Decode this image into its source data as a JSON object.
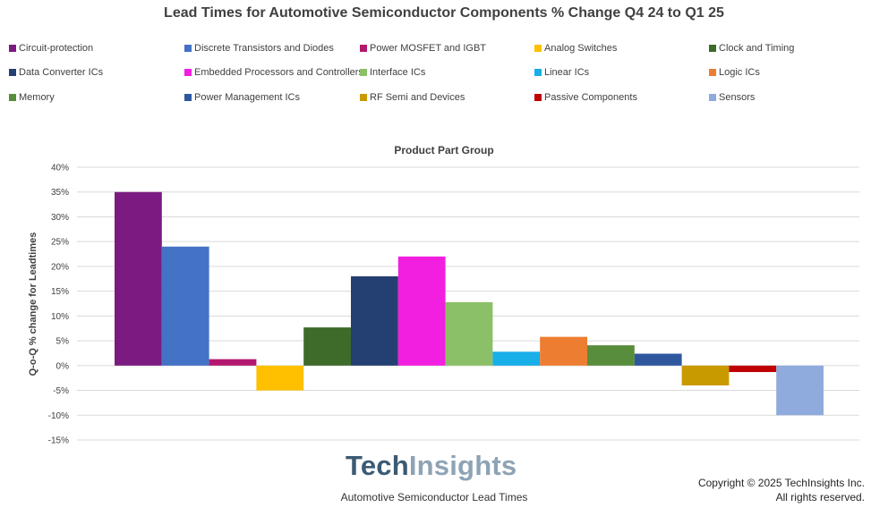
{
  "chart_data": {
    "type": "bar",
    "title": "Lead Times for Automotive Semiconductor Components % Change Q4 24 to Q1 25",
    "subtitle": "Product Part Group",
    "ylabel": "Q-o-Q % change for Leadtimes",
    "ylim": [
      -15,
      40
    ],
    "yticks": [
      40,
      35,
      30,
      25,
      20,
      15,
      10,
      5,
      0,
      -5,
      -10,
      -15
    ],
    "ytick_labels": [
      "40%",
      "35%",
      "30%",
      "25%",
      "20%",
      "15%",
      "10%",
      "5%",
      "0%",
      "-5%",
      "-10%",
      "-15%"
    ],
    "grid": true,
    "legend_position": "top",
    "series": [
      {
        "name": "Circuit-protection",
        "value": 35,
        "color": "#7b1a80"
      },
      {
        "name": "Discrete Transistors and Diodes",
        "value": 24,
        "color": "#4472c4"
      },
      {
        "name": "Power MOSFET and IGBT",
        "value": 1.3,
        "color": "#b3186e"
      },
      {
        "name": "Analog Switches",
        "value": -5,
        "color": "#ffc000"
      },
      {
        "name": "Clock and Timing",
        "value": 7.7,
        "color": "#3e6a2a"
      },
      {
        "name": "Data Converter ICs",
        "value": 18,
        "color": "#243f72"
      },
      {
        "name": "Embedded Processors and Controllers",
        "value": 22,
        "color": "#f21ee0"
      },
      {
        "name": "Interface ICs",
        "value": 12.8,
        "color": "#8cc068"
      },
      {
        "name": "Linear ICs",
        "value": 2.8,
        "color": "#18aee8"
      },
      {
        "name": "Logic ICs",
        "value": 5.8,
        "color": "#ed7d31"
      },
      {
        "name": "Memory",
        "value": 4.1,
        "color": "#588d3c"
      },
      {
        "name": "Power Management ICs",
        "value": 2.4,
        "color": "#2e579e"
      },
      {
        "name": "RF Semi and Devices",
        "value": -4,
        "color": "#c99a00"
      },
      {
        "name": "Passive Components",
        "value": -1.3,
        "color": "#c00000"
      },
      {
        "name": "Sensors",
        "value": -10,
        "color": "#8faadc"
      }
    ]
  },
  "logo": {
    "part1": "Tech",
    "part2": "Insights"
  },
  "footer": {
    "caption": "Automotive Semiconductor Lead Times",
    "copyright_line1": "Copyright © 2025 TechInsights Inc.",
    "copyright_line2": "All rights reserved."
  }
}
